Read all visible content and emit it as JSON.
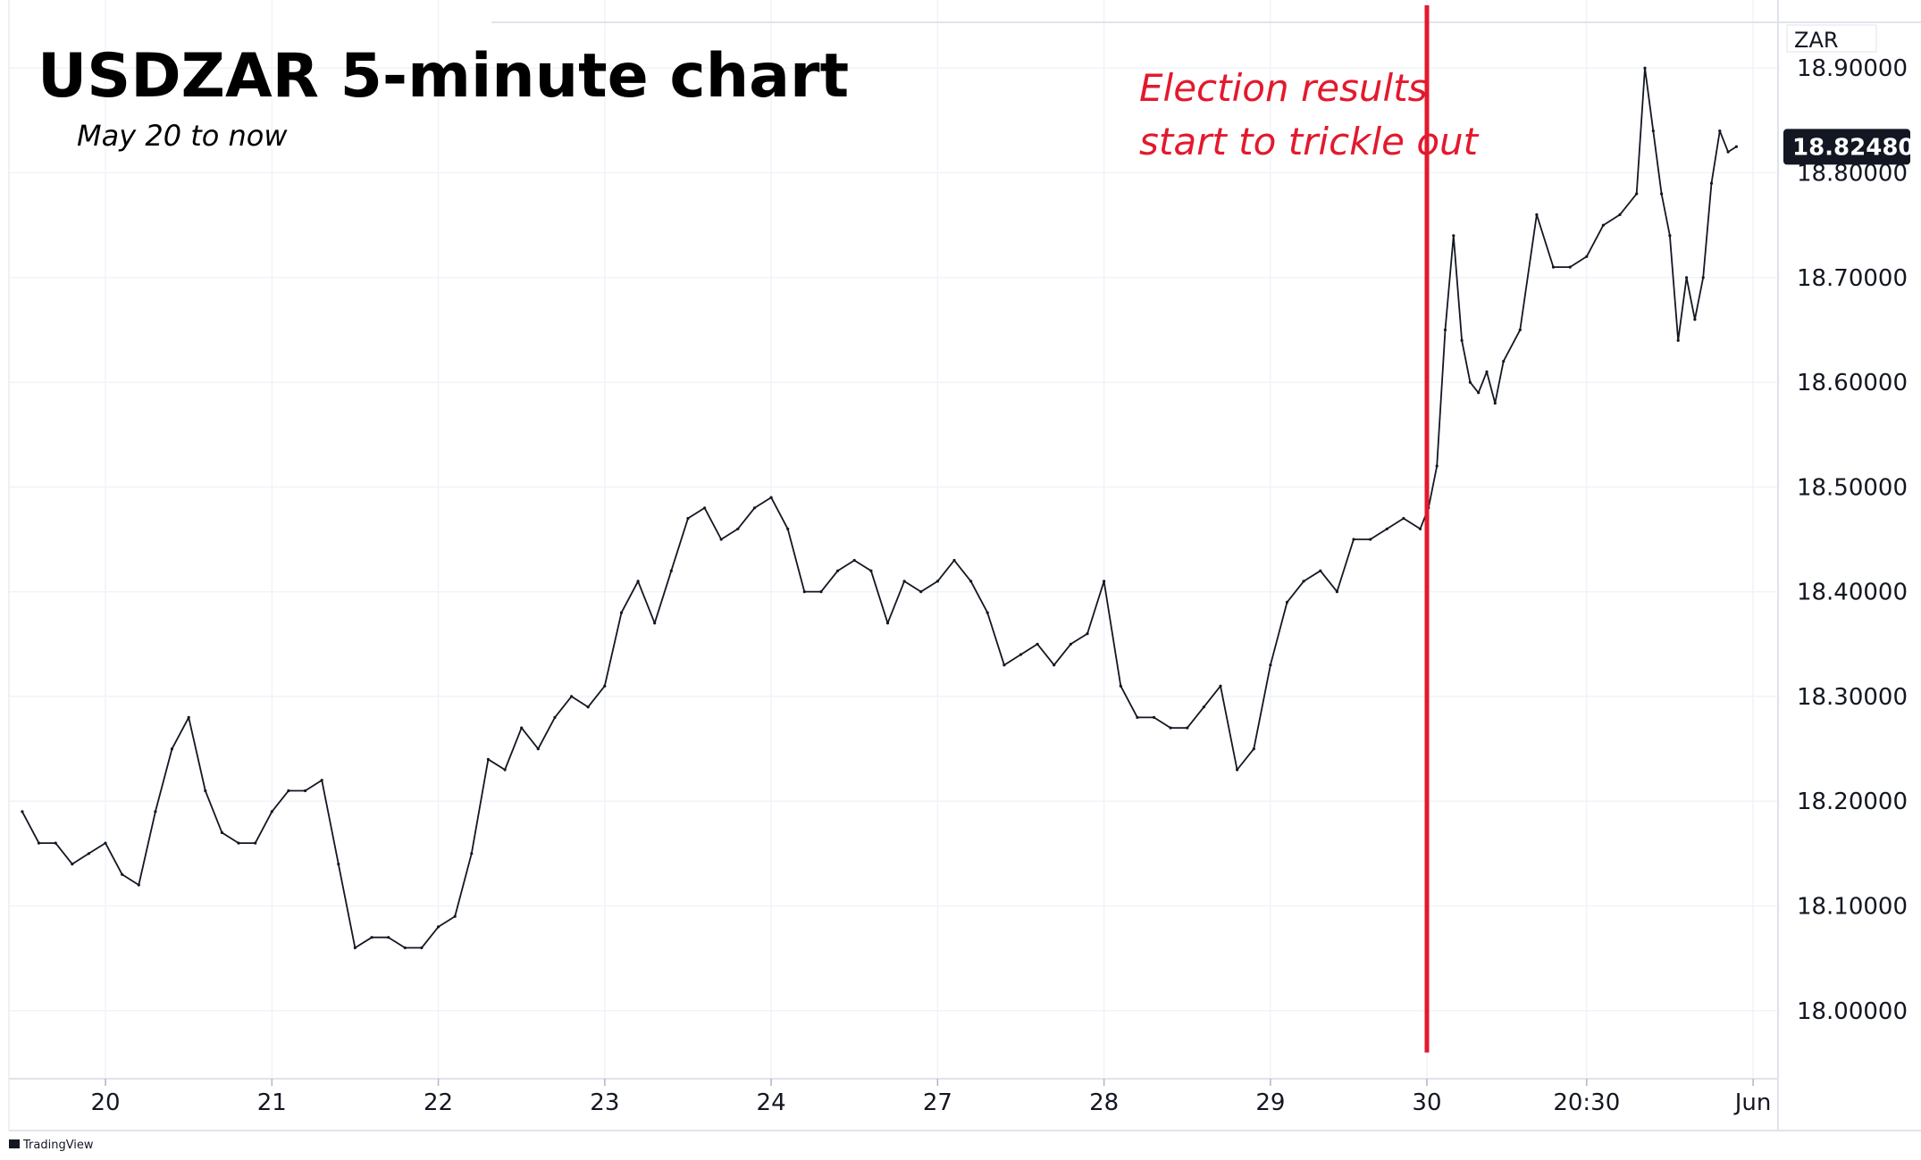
{
  "chart_data": {
    "type": "line",
    "title": "USDZAR 5-minute chart",
    "subtitle": "May 20 to now",
    "unit_label": "ZAR",
    "last_price": "18.82480",
    "y_ticks": [
      "18.00000",
      "18.10000",
      "18.20000",
      "18.30000",
      "18.40000",
      "18.50000",
      "18.60000",
      "18.70000",
      "18.80000",
      "18.90000"
    ],
    "ylim": [
      17.935,
      18.965
    ],
    "x_tick_labels": [
      "20",
      "21",
      "22",
      "23",
      "24",
      "27",
      "28",
      "29",
      "30",
      "20:30",
      "Jun"
    ],
    "x_tick_positions": [
      0.5,
      1.5,
      2.5,
      3.5,
      4.5,
      5.5,
      6.5,
      7.5,
      8.44,
      9.4,
      10.4
    ],
    "xlim": [
      -0.08,
      10.55
    ],
    "x": [
      0,
      0.1,
      0.2,
      0.3,
      0.4,
      0.5,
      0.6,
      0.7,
      0.8,
      0.9,
      1.0,
      1.1,
      1.2,
      1.3,
      1.4,
      1.5,
      1.6,
      1.7,
      1.8,
      1.9,
      2.0,
      2.1,
      2.2,
      2.3,
      2.4,
      2.5,
      2.6,
      2.7,
      2.8,
      2.9,
      3.0,
      3.1,
      3.2,
      3.3,
      3.4,
      3.5,
      3.6,
      3.7,
      3.8,
      3.9,
      4.0,
      4.1,
      4.2,
      4.3,
      4.4,
      4.5,
      4.6,
      4.7,
      4.8,
      4.9,
      5.0,
      5.1,
      5.2,
      5.3,
      5.4,
      5.5,
      5.6,
      5.7,
      5.8,
      5.9,
      6.0,
      6.1,
      6.2,
      6.3,
      6.4,
      6.5,
      6.6,
      6.7,
      6.8,
      6.9,
      7.0,
      7.1,
      7.2,
      7.3,
      7.4,
      7.5,
      7.6,
      7.7,
      7.8,
      7.9,
      8.0,
      8.1,
      8.2,
      8.3,
      8.4,
      8.45,
      8.5,
      8.55,
      8.6,
      8.65,
      8.7,
      8.75,
      8.8,
      8.85,
      8.9,
      9.0,
      9.1,
      9.2,
      9.3,
      9.4,
      9.5,
      9.6,
      9.7,
      9.75,
      9.8,
      9.85,
      9.9,
      9.95,
      10.0,
      10.05,
      10.1,
      10.15,
      10.2,
      10.25,
      10.3
    ],
    "y": [
      18.19,
      18.16,
      18.16,
      18.14,
      18.15,
      18.16,
      18.13,
      18.12,
      18.19,
      18.25,
      18.28,
      18.21,
      18.17,
      18.16,
      18.16,
      18.19,
      18.21,
      18.21,
      18.22,
      18.14,
      18.06,
      18.07,
      18.07,
      18.06,
      18.06,
      18.08,
      18.09,
      18.15,
      18.24,
      18.23,
      18.27,
      18.25,
      18.28,
      18.3,
      18.29,
      18.31,
      18.38,
      18.41,
      18.37,
      18.42,
      18.47,
      18.48,
      18.45,
      18.46,
      18.48,
      18.49,
      18.46,
      18.4,
      18.4,
      18.42,
      18.43,
      18.42,
      18.37,
      18.41,
      18.4,
      18.41,
      18.43,
      18.41,
      18.38,
      18.33,
      18.34,
      18.35,
      18.33,
      18.35,
      18.36,
      18.41,
      18.31,
      18.28,
      18.28,
      18.27,
      18.27,
      18.29,
      18.31,
      18.23,
      18.25,
      18.33,
      18.39,
      18.41,
      18.42,
      18.4,
      18.45,
      18.45,
      18.46,
      18.47,
      18.46,
      18.48,
      18.52,
      18.65,
      18.74,
      18.64,
      18.6,
      18.59,
      18.61,
      18.58,
      18.62,
      18.65,
      18.76,
      18.71,
      18.71,
      18.72,
      18.75,
      18.76,
      18.78,
      18.9,
      18.84,
      18.78,
      18.74,
      18.64,
      18.7,
      18.66,
      18.7,
      18.79,
      18.84,
      18.82,
      18.825
    ],
    "annotation": {
      "x": 8.44,
      "line_top": 18.96,
      "line_bottom": 17.96,
      "lines": [
        "Election results",
        "start to trickle out"
      ]
    },
    "grid": true,
    "colors": {
      "price_line": "#131722",
      "annotation": "#e3192d",
      "grid": "#f0f3fa",
      "price_tag_bg": "#131722"
    },
    "branding": "TradingView"
  }
}
